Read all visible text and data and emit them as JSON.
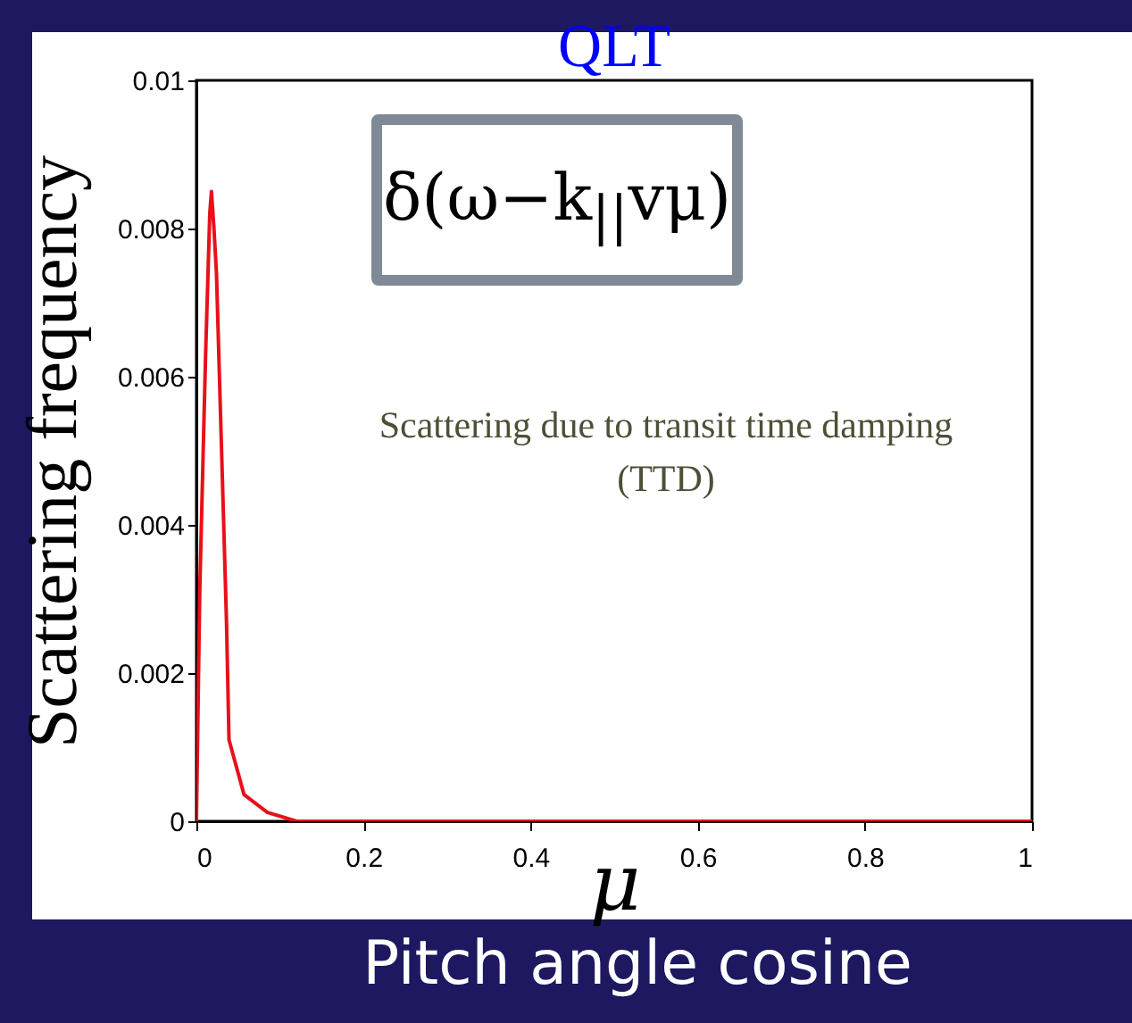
{
  "chart_data": {
    "type": "line",
    "title": "QLT",
    "xlabel": "μ",
    "ylabel": "Scattering frequency",
    "annotations": [
      "δ(ω−k$_{||}$vμ)",
      "Scattering due to transit time damping (TTD)",
      "Pitch angle cosine"
    ],
    "x": [
      0,
      0.004,
      0.011,
      0.016,
      0.018,
      0.021,
      0.024,
      0.036,
      0.039,
      0.057,
      0.085,
      0.12,
      0.15,
      0.3,
      0.5,
      0.7,
      1
    ],
    "series": [
      {
        "color": "#e8101a",
        "values": [
          0,
          0.0031,
          0.0063,
          0.0082,
          0.0085,
          0.008,
          0.0074,
          0.0027,
          0.0011,
          0.00036,
          0.00012,
          0,
          0,
          0,
          0,
          0,
          0
        ]
      }
    ],
    "xlim": [
      0,
      1
    ],
    "ylim": [
      0,
      0.01
    ],
    "xticks": [
      {
        "value": 0,
        "label": "0"
      },
      0.2,
      0.4,
      0.6,
      0.8,
      {
        "value": 1,
        "label": "1"
      }
    ],
    "yticks": [
      {
        "value": 0,
        "label": "0"
      },
      0.002,
      0.004,
      0.006,
      0.008,
      {
        "value": 0.01,
        "label": "0.01"
      }
    ],
    "grid": false
  }
}
